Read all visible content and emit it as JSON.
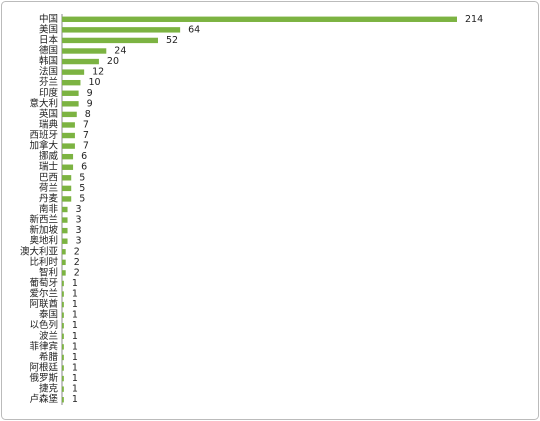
{
  "chart_data": {
    "type": "bar",
    "orientation": "horizontal",
    "color": "#7cb342",
    "categories": [
      "中国",
      "美国",
      "日本",
      "德国",
      "韩国",
      "法国",
      "芬兰",
      "印度",
      "意大利",
      "英国",
      "瑞典",
      "西班牙",
      "加拿大",
      "挪威",
      "瑞士",
      "巴西",
      "荷兰",
      "丹麦",
      "南非",
      "新西兰",
      "新加坡",
      "奥地利",
      "澳大利亚",
      "比利时",
      "智利",
      "葡萄牙",
      "爱尔兰",
      "阿联酋",
      "泰国",
      "以色列",
      "波兰",
      "菲律宾",
      "希腊",
      "阿根廷",
      "俄罗斯",
      "捷克",
      "卢森堡"
    ],
    "values": [
      214,
      64,
      52,
      24,
      20,
      12,
      10,
      9,
      9,
      8,
      7,
      7,
      7,
      6,
      6,
      5,
      5,
      5,
      3,
      3,
      3,
      3,
      2,
      2,
      2,
      1,
      1,
      1,
      1,
      1,
      1,
      1,
      1,
      1,
      1,
      1,
      1
    ]
  }
}
